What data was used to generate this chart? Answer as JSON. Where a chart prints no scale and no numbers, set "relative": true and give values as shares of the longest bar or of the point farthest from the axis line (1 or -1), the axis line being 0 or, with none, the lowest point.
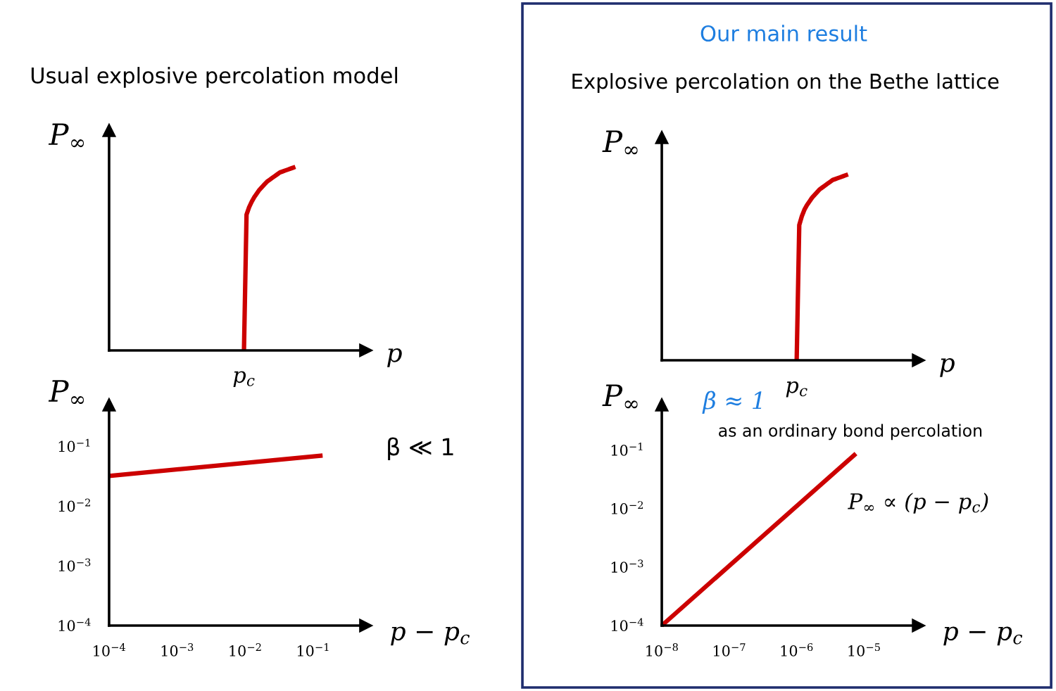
{
  "chart_data": [
    {
      "type": "line",
      "title": "Usual explosive percolation model",
      "xlabel": "p",
      "ylabel": "P$_{∞}$",
      "relative": true,
      "annotations": [
        "p$_{c}$"
      ],
      "categories": [
        null,
        null,
        null,
        null,
        null,
        null,
        null,
        null,
        null,
        null,
        null,
        null,
        null,
        null,
        null,
        null,
        null,
        null,
        null,
        null,
        null,
        null,
        null,
        null,
        null,
        null,
        null,
        null,
        null,
        null,
        null,
        null,
        null,
        null,
        null,
        null,
        null,
        null,
        null,
        null,
        null,
        null,
        null,
        null,
        null,
        null,
        null,
        null,
        null,
        null,
        null,
        null,
        null,
        null,
        null,
        null,
        null,
        null,
        null,
        null,
        null,
        null,
        null,
        null,
        null,
        null,
        null,
        null,
        null,
        null,
        null,
        null,
        null,
        null,
        null,
        null,
        null,
        null,
        null,
        null,
        null,
        null,
        null,
        null,
        null,
        null,
        null,
        null,
        null,
        null,
        null,
        null,
        null,
        null,
        null,
        null,
        null,
        null,
        null,
        null
      ],
      "series": [
        {
          "color": "#cc0000",
          "values": [
            null,
            null,
            null,
            null,
            null,
            null,
            null,
            null,
            null,
            null,
            null,
            null,
            null,
            null,
            null,
            null,
            null,
            null,
            null,
            null,
            null,
            null,
            null,
            null,
            null,
            null,
            null,
            null,
            null,
            null,
            null,
            null,
            null,
            null,
            null,
            null,
            null,
            null,
            null,
            null,
            null,
            null,
            null,
            null,
            null,
            null,
            null,
            null,
            null,
            null,
            null,
            null,
            0,
            0.74,
            0.78,
            0.81,
            0.835,
            0.855,
            0.875,
            0.89,
            0.905,
            0.92,
            0.93,
            0.94,
            0.95,
            0.96,
            0.97,
            0.975,
            0.98,
            0.985,
            0.99,
            0.995,
            1.0,
            null,
            null,
            null,
            null,
            null,
            null,
            null,
            null,
            null,
            null,
            null,
            null,
            null,
            null,
            null,
            null,
            null,
            null,
            null,
            null,
            null,
            null,
            null,
            null,
            null,
            null,
            null
          ]
        }
      ]
    },
    {
      "type": "line",
      "log": "xy",
      "xlabel": "p − p$_{c}$",
      "ylabel": "P$_{∞}$",
      "xlim": [
        0.0001,
        0.6
      ],
      "ylim": [
        0.0001,
        0.5
      ],
      "xticks": [
        {
          "value": 0.0001,
          "label": "10$^{−4}$"
        },
        {
          "value": 0.001,
          "label": "10$^{−3}$"
        },
        {
          "value": 0.01,
          "label": "10$^{−2}$"
        },
        {
          "value": 0.1,
          "label": "10$^{−1}$"
        }
      ],
      "yticks": [
        {
          "value": 0.0001,
          "label": "10$^{−4}$"
        },
        {
          "value": 0.001,
          "label": "10$^{−3}$"
        },
        {
          "value": 0.01,
          "label": "10$^{−2}$"
        },
        {
          "value": 0.1,
          "label": "10$^{−1}$"
        }
      ],
      "series": [
        {
          "color": "#cc0000",
          "x": [
            0.0001,
            0.138
          ],
          "values": [
            0.032,
            0.07
          ]
        }
      ],
      "annotations": [
        "β ≪ 1"
      ]
    },
    {
      "type": "line",
      "title": "Our main result",
      "subtitle": "Explosive percolation on the Bethe lattice",
      "xlabel": "p",
      "ylabel": "P$_{∞}$",
      "relative": true,
      "annotations": [
        "p$_{c}$"
      ],
      "categories": [
        null,
        null,
        null,
        null,
        null,
        null,
        null,
        null,
        null,
        null,
        null,
        null,
        null,
        null,
        null,
        null,
        null,
        null,
        null,
        null,
        null,
        null,
        null,
        null,
        null,
        null,
        null,
        null,
        null,
        null,
        null,
        null,
        null,
        null,
        null,
        null,
        null,
        null,
        null,
        null,
        null,
        null,
        null,
        null,
        null,
        null,
        null,
        null,
        null,
        null,
        null,
        null,
        null,
        null,
        null,
        null,
        null,
        null,
        null,
        null,
        null,
        null,
        null,
        null,
        null,
        null,
        null,
        null,
        null,
        null,
        null,
        null,
        null,
        null,
        null,
        null,
        null,
        null,
        null,
        null,
        null,
        null,
        null,
        null,
        null,
        null,
        null,
        null,
        null,
        null,
        null,
        null,
        null,
        null,
        null,
        null,
        null,
        null,
        null,
        null
      ],
      "series": [
        {
          "color": "#cc0000",
          "values": [
            null,
            null,
            null,
            null,
            null,
            null,
            null,
            null,
            null,
            null,
            null,
            null,
            null,
            null,
            null,
            null,
            null,
            null,
            null,
            null,
            null,
            null,
            null,
            null,
            null,
            null,
            null,
            null,
            null,
            null,
            null,
            null,
            null,
            null,
            null,
            null,
            null,
            null,
            null,
            null,
            null,
            null,
            null,
            null,
            null,
            null,
            null,
            null,
            null,
            null,
            null,
            null,
            0,
            0.727,
            0.775,
            0.81,
            0.835,
            0.855,
            0.875,
            0.89,
            0.905,
            0.92,
            0.93,
            0.94,
            0.95,
            0.96,
            0.97,
            0.975,
            0.98,
            0.985,
            0.99,
            0.995,
            1.0,
            null,
            null,
            null,
            null,
            null,
            null,
            null,
            null,
            null,
            null,
            null,
            null,
            null,
            null,
            null,
            null,
            null,
            null,
            null,
            null,
            null,
            null,
            null,
            null,
            null,
            null,
            null
          ]
        }
      ]
    },
    {
      "type": "line",
      "log": "xy",
      "xlabel": "p − p$_{c}$",
      "ylabel": "P$_{∞}$",
      "xlim": [
        1e-08,
        6.5e-05
      ],
      "ylim": [
        0.0001,
        0.6
      ],
      "xticks": [
        {
          "value": 1e-08,
          "label": "10$^{−8}$"
        },
        {
          "value": 1e-07,
          "label": "10$^{−7}$"
        },
        {
          "value": 1e-06,
          "label": "10$^{−6}$"
        },
        {
          "value": 1e-05,
          "label": "10$^{−5}$"
        }
      ],
      "yticks": [
        {
          "value": 0.0001,
          "label": "10$^{−4}$"
        },
        {
          "value": 0.001,
          "label": "10$^{−3}$"
        },
        {
          "value": 0.01,
          "label": "10$^{−2}$"
        },
        {
          "value": 0.1,
          "label": "10$^{−1}$"
        }
      ],
      "series": [
        {
          "color": "#cc0000",
          "x": [
            1e-08,
            7.6e-06
          ],
          "values": [
            0.0001,
            0.087
          ]
        }
      ],
      "annotations": [
        "β ≈ 1",
        "as an ordinary bond percolation",
        "P$_{∞}$ ∝ (p − p$_{c}$)"
      ]
    }
  ]
}
